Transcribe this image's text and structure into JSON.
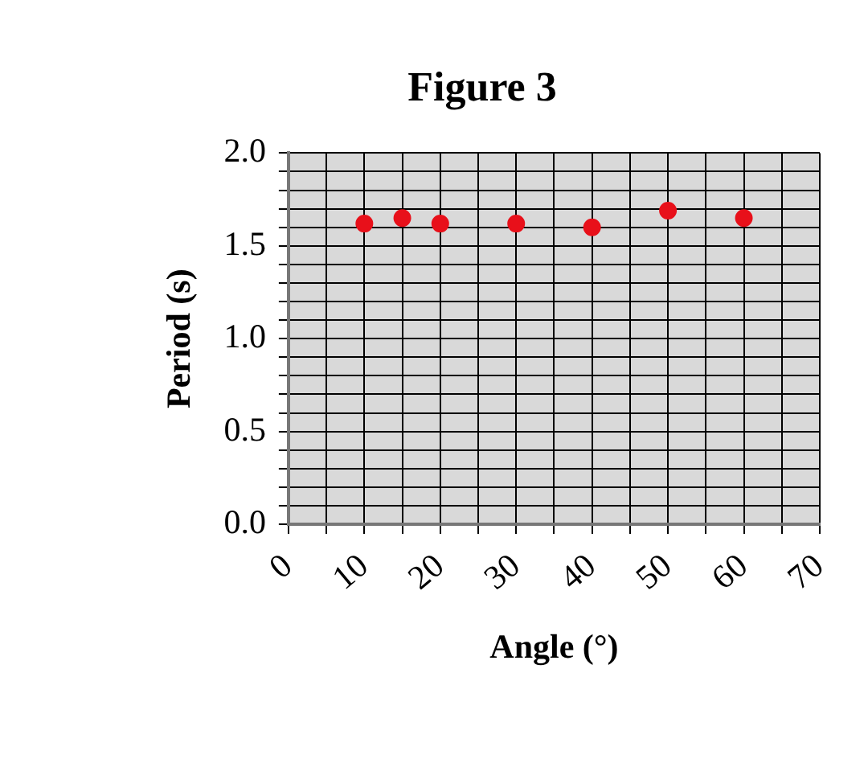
{
  "chart_data": {
    "type": "scatter",
    "title": "Figure 3",
    "xlabel": "Angle (°)",
    "ylabel": "Period (s)",
    "x": [
      10,
      15,
      20,
      30,
      40,
      50,
      60
    ],
    "series": [
      {
        "color": "#e8101a",
        "values": [
          1.62,
          1.65,
          1.62,
          1.62,
          1.6,
          1.69,
          1.65
        ]
      }
    ],
    "xlim": [
      0,
      70
    ],
    "ylim": [
      0,
      2
    ],
    "xticks": [
      0,
      {
        "value": 5,
        "label": null
      },
      10,
      {
        "value": 15,
        "label": null
      },
      20,
      {
        "value": 25,
        "label": null
      },
      30,
      {
        "value": 35,
        "label": null
      },
      40,
      {
        "value": 45,
        "label": null
      },
      50,
      {
        "value": 55,
        "label": null
      },
      60,
      {
        "value": 65,
        "label": null
      },
      70
    ],
    "yticks": [
      {
        "value": 0,
        "label": "0.0"
      },
      {
        "value": 0.1,
        "label": null
      },
      {
        "value": 0.2,
        "label": null
      },
      {
        "value": 0.3,
        "label": null
      },
      {
        "value": 0.4,
        "label": null
      },
      {
        "value": 0.5,
        "label": "0.5"
      },
      {
        "value": 0.6,
        "label": null
      },
      {
        "value": 0.7,
        "label": null
      },
      {
        "value": 0.8,
        "label": null
      },
      {
        "value": 0.9,
        "label": null
      },
      {
        "value": 1,
        "label": "1.0"
      },
      {
        "value": 1.1,
        "label": null
      },
      {
        "value": 1.2,
        "label": null
      },
      {
        "value": 1.3,
        "label": null
      },
      {
        "value": 1.4,
        "label": null
      },
      {
        "value": 1.5,
        "label": "1.5"
      },
      {
        "value": 1.6,
        "label": null
      },
      {
        "value": 1.7,
        "label": null
      },
      {
        "value": 1.8,
        "label": null
      },
      {
        "value": 1.9,
        "label": null
      },
      {
        "value": 2,
        "label": "2.0"
      }
    ],
    "grid": true,
    "marker": "circle",
    "legend": false
  }
}
